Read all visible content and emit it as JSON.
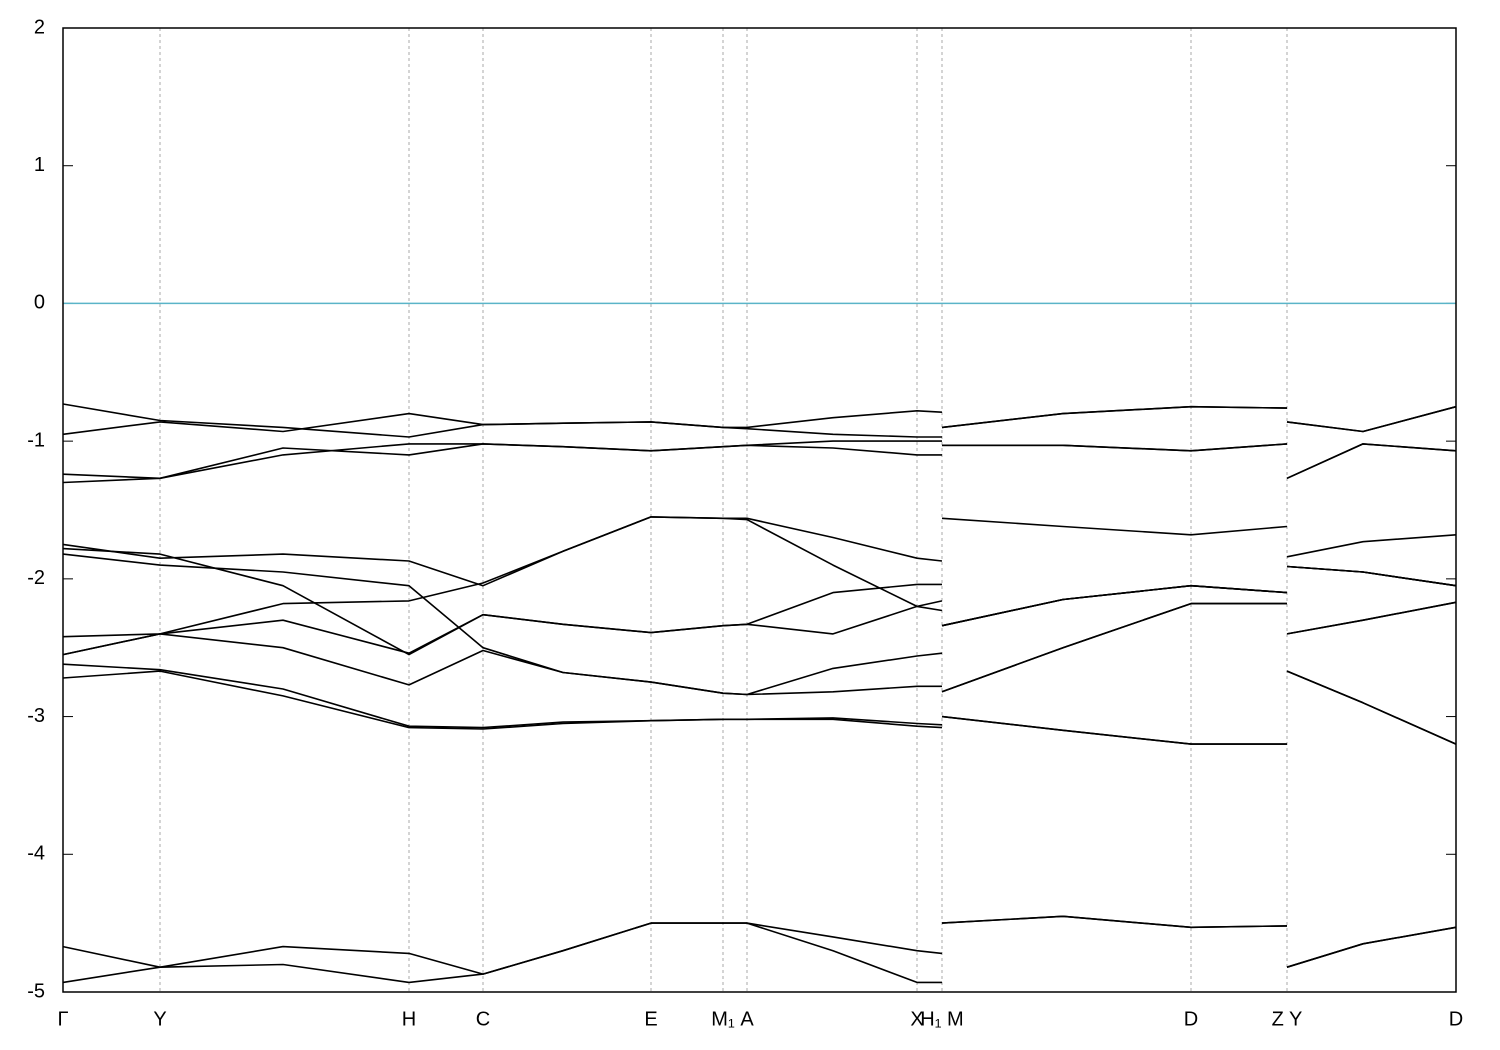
{
  "chart_data": {
    "type": "line",
    "x": [
      0,
      0.97,
      2.2,
      3.46,
      4.2,
      5.0,
      5.88,
      6.6,
      6.84,
      7.7,
      8.54,
      8.79,
      8.79,
      8.79,
      10.0,
      11.28,
      12.24,
      12.24,
      12.24,
      13.0,
      13.93
    ],
    "xlim": [
      0,
      13.93
    ],
    "xticks": [
      {
        "value": 0,
        "label": "Γ"
      },
      {
        "value": 0.97,
        "label": "Y"
      },
      {
        "value": 3.46,
        "label": "H"
      },
      {
        "value": 4.2,
        "label": "C"
      },
      {
        "value": 5.88,
        "label": "E"
      },
      {
        "value": 6.6,
        "label": "M₁"
      },
      {
        "value": 6.84,
        "label": "A"
      },
      {
        "value": 8.54,
        "label": "X"
      },
      {
        "value": 8.79,
        "label": "H₁ M"
      },
      {
        "value": 11.28,
        "label": "D"
      },
      {
        "value": 12.24,
        "label": "Z Y"
      },
      {
        "value": 13.93,
        "label": "D"
      }
    ],
    "ylim": [
      -5,
      2
    ],
    "yticks": [
      -5,
      -4,
      -3,
      -2,
      -1,
      0,
      1,
      2
    ],
    "grid": true,
    "reference_line": {
      "value": 0,
      "color": "#5ab4c8"
    },
    "series": [
      {
        "color": "#000000",
        "values": [
          -4.93,
          -4.82,
          -4.8,
          -4.93,
          -4.87,
          -4.7,
          -4.5,
          -4.5,
          -4.5,
          -4.7,
          -4.93,
          -4.93,
          null,
          -4.5,
          -4.45,
          -4.53,
          -4.52,
          null,
          -4.82,
          -4.65,
          -4.53
        ]
      },
      {
        "color": "#000000",
        "values": [
          -4.67,
          -4.82,
          -4.67,
          -4.72,
          -4.87,
          -4.7,
          -4.5,
          -4.5,
          -4.5,
          -4.6,
          -4.7,
          -4.72,
          null,
          -4.5,
          -4.45,
          -4.53,
          -4.52,
          null,
          -4.82,
          -4.65,
          -4.53
        ]
      },
      {
        "color": "#000000",
        "values": [
          -2.72,
          -2.67,
          -2.85,
          -3.08,
          -3.09,
          -3.05,
          -3.03,
          -3.02,
          -3.02,
          -3.02,
          -3.07,
          -3.08,
          null,
          -3.0,
          -3.1,
          -3.2,
          -3.2,
          null,
          -2.67,
          -2.9,
          -3.2
        ]
      },
      {
        "color": "#000000",
        "values": [
          -2.62,
          -2.66,
          -2.8,
          -3.07,
          -3.08,
          -3.04,
          -3.03,
          -3.02,
          -3.02,
          -3.01,
          -3.05,
          -3.06,
          null,
          -3.0,
          -3.1,
          -3.2,
          -3.2,
          null,
          -2.67,
          -2.9,
          -3.2
        ]
      },
      {
        "color": "#000000",
        "values": [
          -2.55,
          -2.4,
          -2.5,
          -2.77,
          -2.52,
          -2.68,
          -2.75,
          -2.83,
          -2.84,
          -2.82,
          -2.78,
          -2.78,
          null,
          -2.82,
          -2.5,
          -2.18,
          -2.18,
          null,
          -2.4,
          -2.3,
          -2.17
        ]
      },
      {
        "color": "#000000",
        "values": [
          -2.42,
          -2.4,
          -2.3,
          -2.54,
          -2.26,
          -2.33,
          -2.39,
          -2.34,
          -2.33,
          -2.4,
          -2.2,
          -2.16,
          null,
          -2.34,
          -2.15,
          -2.05,
          -2.1,
          null,
          -1.91,
          -1.95,
          -2.05
        ]
      },
      {
        "color": "#000000",
        "values": [
          -2.55,
          -2.4,
          -2.18,
          -2.16,
          -2.03,
          -1.8,
          -1.55,
          -1.56,
          -1.56,
          -1.7,
          -1.85,
          -1.87,
          null,
          -1.56,
          -1.62,
          -1.68,
          -1.62,
          null,
          -1.84,
          -1.73,
          -1.68
        ]
      },
      {
        "color": "#000000",
        "values": [
          -1.75,
          -1.85,
          -1.82,
          -1.87,
          -2.05,
          -1.8,
          -1.55,
          -1.56,
          -1.57,
          -1.9,
          -2.2,
          -2.23,
          null,
          -2.34,
          -2.15,
          -2.05,
          -2.1,
          null,
          -1.91,
          -1.95,
          -2.05
        ]
      },
      {
        "color": "#000000",
        "values": [
          -1.78,
          -1.82,
          -2.05,
          -2.55,
          -2.26,
          -2.33,
          -2.39,
          -2.34,
          -2.33,
          -2.1,
          -2.04,
          -2.04,
          null,
          -2.34,
          -2.15,
          -2.05,
          -2.1,
          null,
          -1.91,
          -1.95,
          -2.05
        ]
      },
      {
        "color": "#000000",
        "values": [
          -1.82,
          -1.9,
          -1.95,
          -2.05,
          -2.5,
          -2.68,
          -2.75,
          -2.83,
          -2.84,
          -2.65,
          -2.56,
          -2.54,
          null,
          -2.82,
          -2.5,
          -2.18,
          -2.18,
          null,
          -2.4,
          -2.3,
          -2.17
        ]
      },
      {
        "color": "#000000",
        "values": [
          -0.73,
          -0.85,
          -0.9,
          -0.97,
          -0.88,
          -0.87,
          -0.86,
          -0.9,
          -0.91,
          -0.95,
          -0.97,
          -0.97,
          null,
          -0.9,
          -0.8,
          -0.75,
          -0.76,
          null,
          -0.86,
          -0.93,
          -0.75
        ]
      },
      {
        "color": "#000000",
        "values": [
          -0.95,
          -0.86,
          -0.93,
          -0.8,
          -0.88,
          -0.87,
          -0.86,
          -0.9,
          -0.9,
          -0.83,
          -0.78,
          -0.79,
          null,
          -0.9,
          -0.8,
          -0.75,
          -0.76,
          null,
          -0.86,
          -0.93,
          -0.75
        ]
      },
      {
        "color": "#000000",
        "values": [
          -1.24,
          -1.27,
          -1.1,
          -1.02,
          -1.02,
          -1.04,
          -1.07,
          -1.04,
          -1.03,
          -1.05,
          -1.1,
          -1.1,
          null,
          -1.03,
          -1.03,
          -1.07,
          -1.02,
          null,
          -1.27,
          -1.02,
          -1.07
        ]
      },
      {
        "color": "#000000",
        "values": [
          -1.3,
          -1.27,
          -1.05,
          -1.1,
          -1.02,
          -1.04,
          -1.07,
          -1.04,
          -1.03,
          -1.0,
          -1.0,
          -1.0,
          null,
          -1.03,
          -1.03,
          -1.07,
          -1.02,
          null,
          -1.27,
          -1.02,
          -1.07
        ]
      }
    ]
  }
}
